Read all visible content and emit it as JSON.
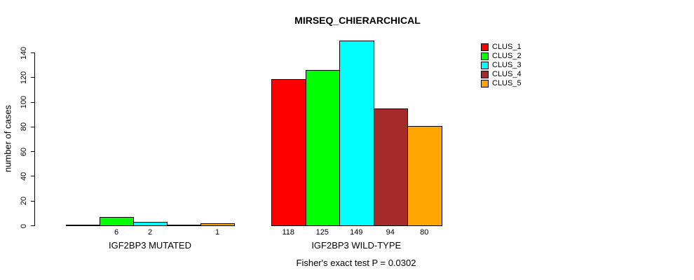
{
  "chart_data": {
    "type": "bar",
    "title": "MIRSEQ_CHIERARCHICAL",
    "ylabel": "number of cases",
    "xlabel": "",
    "ylim": [
      0,
      140
    ],
    "yticks": [
      0,
      20,
      40,
      60,
      80,
      100,
      120,
      140
    ],
    "grid": false,
    "legend_position": "top-right",
    "series": [
      "CLUS_1",
      "CLUS_2",
      "CLUS_3",
      "CLUS_4",
      "CLUS_5"
    ],
    "series_colors": [
      "#ff0000",
      "#00ff00",
      "#00ffff",
      "#a52a2a",
      "#ffa500"
    ],
    "groups": [
      {
        "label": "IGF2BP3 MUTATED",
        "values": [
          0,
          6,
          2,
          0,
          1
        ]
      },
      {
        "label": "IGF2BP3 WILD-TYPE",
        "values": [
          118,
          125,
          149,
          94,
          80
        ]
      }
    ],
    "bar_value_labels_note": "value printed under each bar only when value > 0",
    "annotation": "Fisher's exact test P = 0.0302",
    "bar_border_color": "#000000",
    "text_color": "#000000",
    "background_color": "#ffffff"
  }
}
